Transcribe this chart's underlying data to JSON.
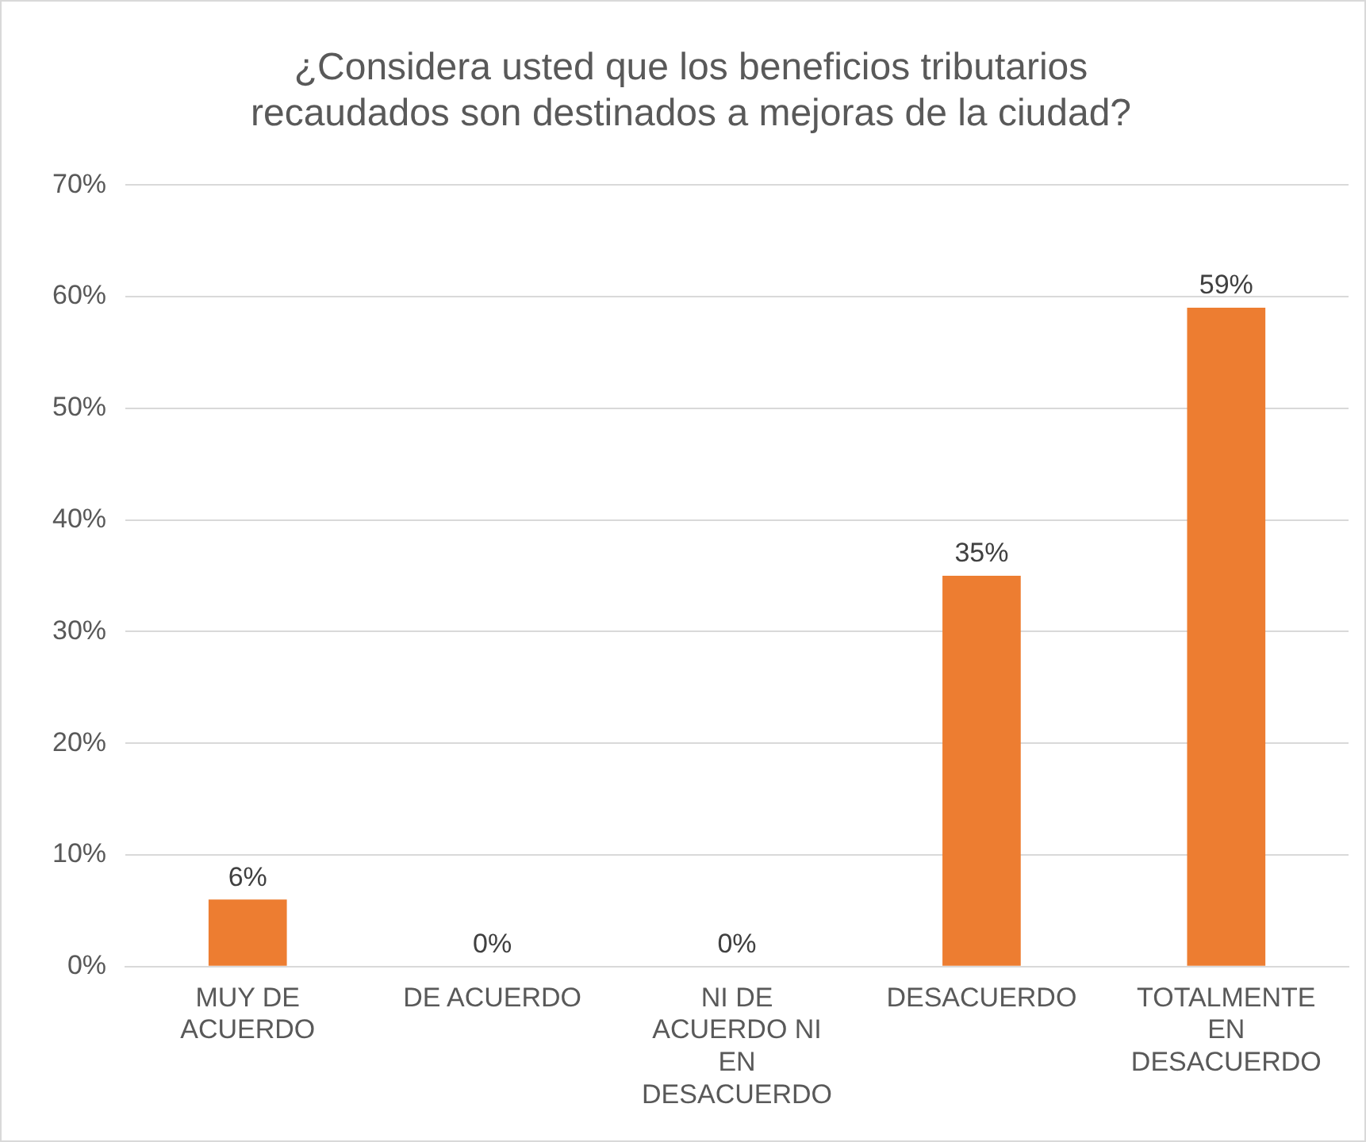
{
  "chart_data": {
    "type": "bar",
    "title": [
      "¿Considera usted que los beneficios tributarios",
      "recaudados son destinados a mejoras de la ciudad?"
    ],
    "categories": [
      "MUY DE ACUERDO",
      "DE ACUERDO",
      "NI DE ACUERDO NI EN DESACUERDO",
      "DESACUERDO",
      "TOTALMENTE EN DESACUERDO"
    ],
    "values": [
      6,
      0,
      0,
      35,
      59
    ],
    "value_labels": [
      "6%",
      "0%",
      "0%",
      "35%",
      "59%"
    ],
    "color": "#ed7d31",
    "ylim": [
      0,
      70
    ],
    "yticks": [
      {
        "value": 0,
        "label": "0%"
      },
      {
        "value": 10,
        "label": "10%"
      },
      {
        "value": 20,
        "label": "20%"
      },
      {
        "value": 30,
        "label": "30%"
      },
      {
        "value": 40,
        "label": "40%"
      },
      {
        "value": 50,
        "label": "50%"
      },
      {
        "value": 60,
        "label": "60%"
      },
      {
        "value": 70,
        "label": "70%"
      }
    ],
    "grid": "y",
    "legend": false
  }
}
